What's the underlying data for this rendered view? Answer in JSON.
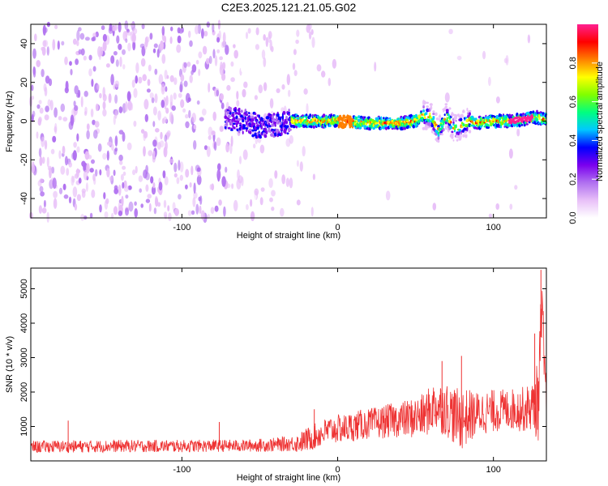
{
  "figure": {
    "title": "C2E3.2025.121.21.05.G02"
  },
  "chart_data": [
    {
      "type": "heatmap",
      "xlabel": "Height of straight line (km)",
      "ylabel": "Frequency (Hz)",
      "xlim": [
        -197,
        134
      ],
      "ylim": [
        -50,
        50
      ],
      "xticks": [
        -100,
        0,
        100
      ],
      "yticks": [
        -40,
        -20,
        0,
        20,
        40
      ],
      "grid": false,
      "colorbar": {
        "label": "Normalized spectral amplitude",
        "range": [
          0,
          1
        ],
        "ticks": [
          0.0,
          0.2,
          0.4,
          0.6,
          0.8
        ],
        "tick_labels": [
          "0.0",
          "0.2",
          "0.4",
          "0.6",
          "0.8"
        ],
        "colormap": [
          "#ffffff",
          "#e8c0f8",
          "#b070f0",
          "#7a00ee",
          "#0000ff",
          "#00c8ff",
          "#00ff80",
          "#80ff00",
          "#ffff00",
          "#ff8000",
          "#ff0000",
          "#ff2090"
        ]
      },
      "ridge": {
        "x": [
          -70,
          -60,
          -50,
          -40,
          -30,
          -20,
          -10,
          0,
          20,
          40,
          50,
          55,
          60,
          65,
          70,
          75,
          80,
          85,
          90,
          100,
          110,
          120,
          128,
          132
        ],
        "y": [
          1,
          0,
          -3,
          -2,
          0,
          0,
          0,
          0,
          -1,
          -1,
          0,
          3,
          2,
          -5,
          3,
          -4,
          -2,
          0,
          -1,
          0,
          0,
          1,
          2,
          1
        ]
      }
    },
    {
      "type": "line",
      "xlabel": "Height of straight line (km)",
      "ylabel": "SNR (10 * v/v)",
      "xlim": [
        -197,
        134
      ],
      "ylim": [
        0,
        5600
      ],
      "xticks": [
        -100,
        0,
        100
      ],
      "yticks": [
        1000,
        2000,
        3000,
        4000,
        5000
      ],
      "grid": false,
      "color": "#ee3333",
      "series": [
        {
          "x": [
            -197,
            -180,
            -160,
            -140,
            -120,
            -100,
            -80,
            -60,
            -40,
            -25,
            -15,
            -5,
            5,
            15,
            25,
            35,
            45,
            55,
            62,
            70,
            78,
            85,
            92,
            100,
            110,
            120,
            126,
            129,
            131,
            134
          ],
          "y": [
            400,
            420,
            420,
            430,
            430,
            430,
            440,
            440,
            470,
            520,
            700,
            900,
            950,
            1050,
            1100,
            1180,
            1220,
            1300,
            1600,
            1500,
            1200,
            1300,
            1400,
            1450,
            1500,
            1500,
            1600,
            1800,
            4200,
            1700
          ]
        }
      ],
      "noise_envelope": {
        "x": [
          -197,
          -150,
          -100,
          -60,
          -30,
          -20,
          -10,
          0,
          20,
          40,
          60,
          70,
          80,
          90,
          110,
          125,
          130,
          134
        ],
        "amp": [
          180,
          180,
          180,
          180,
          220,
          350,
          400,
          420,
          450,
          520,
          700,
          800,
          900,
          650,
          600,
          700,
          1400,
          700
        ]
      },
      "spikes": [
        {
          "x": 130.5,
          "y": 5550
        },
        {
          "x": 126.5,
          "y": 3700
        },
        {
          "x": 79.5,
          "y": 3050
        },
        {
          "x": 67.0,
          "y": 2900
        },
        {
          "x": -173.0,
          "y": 1170
        },
        {
          "x": -76.0,
          "y": 1130
        },
        {
          "x": -15.0,
          "y": 1500
        }
      ]
    }
  ]
}
